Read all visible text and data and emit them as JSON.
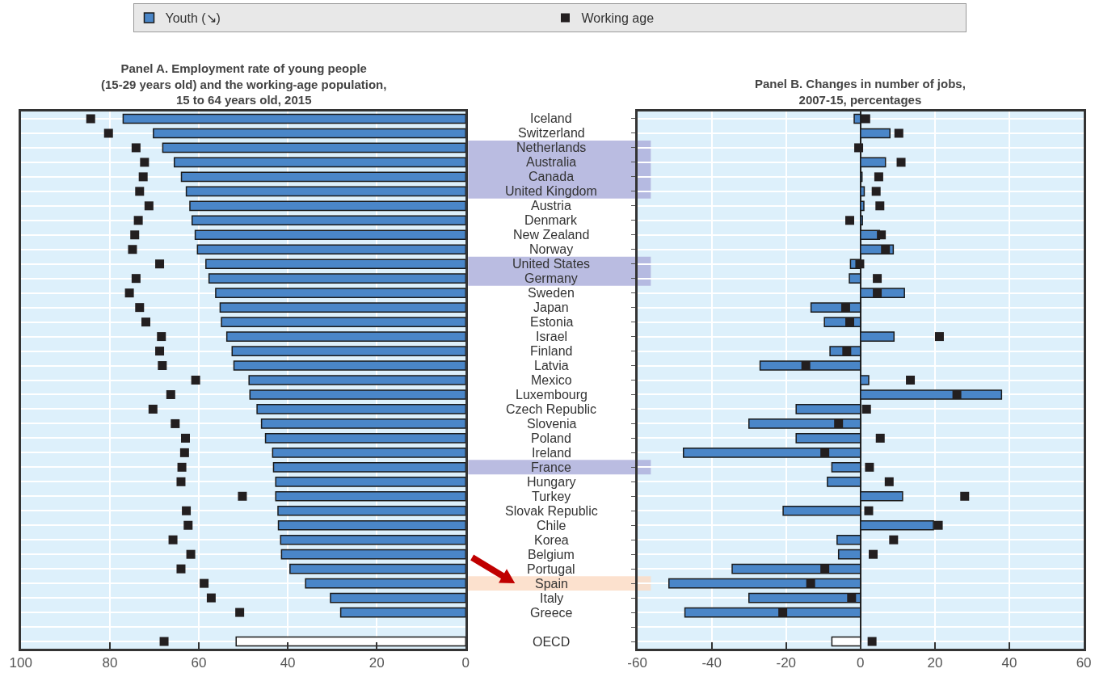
{
  "chart_data": [
    {
      "type": "bar",
      "orientation": "horizontal",
      "title": "Panel A. Employment rate of young people\n(15-29 years old) and the working-age population,\n15 to 64 years old, 2015",
      "categories": [
        "Iceland",
        "Switzerland",
        "Netherlands",
        "Australia",
        "Canada",
        "United Kingdom",
        "Austria",
        "Denmark",
        "New Zealand",
        "Norway",
        "United States",
        "Germany",
        "Sweden",
        "Japan",
        "Estonia",
        "Israel",
        "Finland",
        "Latvia",
        "Mexico",
        "Luxembourg",
        "Czech Republic",
        "Slovenia",
        "Poland",
        "Ireland",
        "France",
        "Hungary",
        "Turkey",
        "Slovak Republic",
        "Chile",
        "Korea",
        "Belgium",
        "Portugal",
        "Spain",
        "Italy",
        "Greece",
        null,
        "OECD"
      ],
      "series": [
        {
          "name": "Youth (↘)",
          "color": "#4a86c8",
          "colors": [
            "#4a86c8",
            "#4a86c8",
            "#4a86c8",
            "#4a86c8",
            "#4a86c8",
            "#4a86c8",
            "#4a86c8",
            "#4a86c8",
            "#4a86c8",
            "#4a86c8",
            "#4a86c8",
            "#4a86c8",
            "#4a86c8",
            "#4a86c8",
            "#4a86c8",
            "#4a86c8",
            "#4a86c8",
            "#4a86c8",
            "#4a86c8",
            "#4a86c8",
            "#4a86c8",
            "#4a86c8",
            "#4a86c8",
            "#4a86c8",
            "#4a86c8",
            "#4a86c8",
            "#4a86c8",
            "#4a86c8",
            "#4a86c8",
            "#4a86c8",
            "#4a86c8",
            "#4a86c8",
            "#4a86c8",
            "#4a86c8",
            "#4a86c8",
            "#4a86c8",
            "#ffffff"
          ],
          "values": [
            77.0,
            70.2,
            68.1,
            65.5,
            63.9,
            62.8,
            62.0,
            61.5,
            60.8,
            60.3,
            58.4,
            57.7,
            56.2,
            55.2,
            54.9,
            53.7,
            52.5,
            52.1,
            48.7,
            48.5,
            46.9,
            45.9,
            45.0,
            43.4,
            43.2,
            42.7,
            42.7,
            42.2,
            42.1,
            41.6,
            41.4,
            39.5,
            36.0,
            30.4,
            28.1,
            null,
            51.6
          ]
        },
        {
          "name": "Working age",
          "type": "scatter",
          "color": "#231f20",
          "values": [
            84.3,
            80.3,
            74.1,
            72.2,
            72.5,
            73.3,
            71.2,
            73.6,
            74.4,
            74.9,
            68.8,
            74.1,
            75.6,
            73.3,
            71.9,
            68.4,
            68.8,
            68.2,
            60.7,
            66.3,
            70.3,
            65.3,
            63.0,
            63.2,
            63.8,
            64.0,
            50.2,
            62.8,
            62.4,
            65.8,
            61.8,
            64.0,
            58.8,
            57.2,
            50.8,
            null,
            67.8
          ]
        }
      ],
      "xlim": [
        100,
        0
      ],
      "xticks": [
        100,
        80,
        60,
        40,
        20,
        0
      ],
      "grid": true,
      "legend": "top",
      "marker": "square",
      "tick_labels": "x"
    },
    {
      "type": "bar",
      "orientation": "horizontal",
      "title": "Panel B. Changes in number of jobs,\n2007-15, percentages",
      "categories": [
        "Iceland",
        "Switzerland",
        "Netherlands",
        "Australia",
        "Canada",
        "United Kingdom",
        "Austria",
        "Denmark",
        "New Zealand",
        "Norway",
        "United States",
        "Germany",
        "Sweden",
        "Japan",
        "Estonia",
        "Israel",
        "Finland",
        "Latvia",
        "Mexico",
        "Luxembourg",
        "Czech Republic",
        "Slovenia",
        "Poland",
        "Ireland",
        "France",
        "Hungary",
        "Turkey",
        "Slovak Republic",
        "Chile",
        "Korea",
        "Belgium",
        "Portugal",
        "Spain",
        "Italy",
        "Greece",
        null,
        "OECD"
      ],
      "series": [
        {
          "name": "Youth (↘)",
          "color": "#4a86c8",
          "colors": [
            "#4a86c8",
            "#4a86c8",
            "#4a86c8",
            "#4a86c8",
            "#4a86c8",
            "#4a86c8",
            "#4a86c8",
            "#4a86c8",
            "#4a86c8",
            "#4a86c8",
            "#4a86c8",
            "#4a86c8",
            "#4a86c8",
            "#4a86c8",
            "#4a86c8",
            "#4a86c8",
            "#4a86c8",
            "#4a86c8",
            "#4a86c8",
            "#4a86c8",
            "#4a86c8",
            "#4a86c8",
            "#4a86c8",
            "#4a86c8",
            "#4a86c8",
            "#4a86c8",
            "#4a86c8",
            "#4a86c8",
            "#4a86c8",
            "#4a86c8",
            "#4a86c8",
            "#4a86c8",
            "#4a86c8",
            "#4a86c8",
            "#4a86c8",
            "#4a86c8",
            "#ffffff"
          ],
          "values": [
            -1.7,
            7.9,
            null,
            6.7,
            0.4,
            1.0,
            0.9,
            0.5,
            5.1,
            8.8,
            -2.7,
            -3.0,
            11.8,
            -13.3,
            -9.7,
            9.0,
            -8.2,
            -27.0,
            2.2,
            37.9,
            -17.3,
            -30.0,
            -17.3,
            -47.6,
            -7.7,
            -8.9,
            11.3,
            -20.8,
            19.6,
            -6.3,
            -5.9,
            -34.5,
            -51.5,
            -30.0,
            -47.2,
            null,
            -7.7
          ]
        },
        {
          "name": "Working age",
          "type": "scatter",
          "color": "#231f20",
          "values": [
            1.4,
            10.3,
            -0.5,
            10.9,
            4.9,
            4.2,
            5.2,
            -2.9,
            5.6,
            6.7,
            -0.2,
            4.5,
            4.5,
            -4.0,
            -2.9,
            21.2,
            -3.7,
            -14.7,
            13.4,
            25.9,
            1.6,
            -5.9,
            5.3,
            -9.6,
            2.4,
            7.7,
            28.0,
            2.2,
            20.9,
            8.9,
            3.4,
            -9.6,
            -13.4,
            -2.4,
            -20.9,
            null,
            3.1
          ]
        }
      ],
      "xlim": [
        -60,
        60
      ],
      "xticks": [
        -60,
        -40,
        -20,
        0,
        20,
        40,
        60
      ],
      "grid": true,
      "legend": "top",
      "marker": "square",
      "tick_labels": "x"
    }
  ]
}
